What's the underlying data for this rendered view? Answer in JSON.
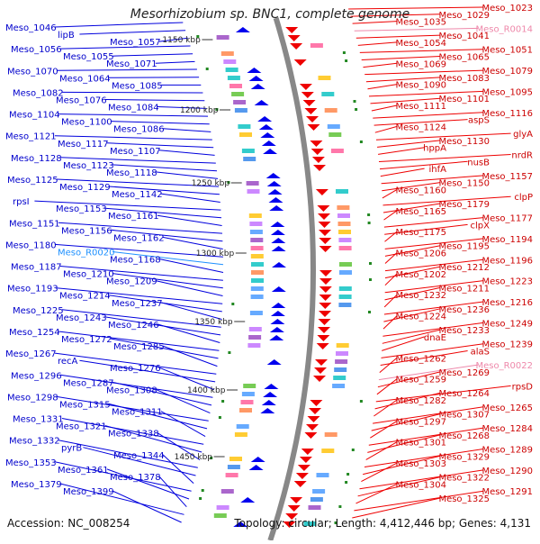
{
  "title": "Mesorhizobium sp. BNC1, complete genome",
  "footer": {
    "accession": "Accession: NC_008254",
    "summary": "Topology: circular; Length: 4,412,446 bp; Genes: 4,131"
  },
  "colors": {
    "left_label": "#0000cc",
    "left_line": "#0000dd",
    "right_label": "#cc0000",
    "right_line": "#ee0000",
    "rna_label": "#1e90ff",
    "pink_label": "#ee88aa",
    "backbone": "#888888",
    "ticks": "#228822",
    "minus_strand": "#0000ee",
    "plus_strand": "#ee0000"
  },
  "ruler": [
    "1150 kbp",
    "1200 kbp",
    "1250 kbp",
    "1300 kbp",
    "1350 kbp",
    "1400 kbp",
    "1450 kbp"
  ],
  "left_labels": [
    "Meso_1046",
    "lipB",
    "Meso_1057",
    "Meso_1056",
    "Meso_1055",
    "Meso_1071",
    "Meso_1070",
    "Meso_1064",
    "Meso_1085",
    "Meso_1082",
    "Meso_1076",
    "Meso_1084",
    "Meso_1104",
    "Meso_1100",
    "Meso_1086",
    "Meso_1121",
    "Meso_1117",
    "Meso_1107",
    "Meso_1128",
    "Meso_1123",
    "Meso_1118",
    "Meso_1125",
    "Meso_1129",
    "Meso_1142",
    "rpsI",
    "Meso_1153",
    "Meso_1161",
    "Meso_1151",
    "Meso_1156",
    "Meso_1162",
    "Meso_1180",
    "Meso_R0020",
    "Meso_1168",
    "Meso_1187",
    "Meso_1210",
    "Meso_1209",
    "Meso_1193",
    "Meso_1214",
    "Meso_1237",
    "Meso_1225",
    "Meso_1243",
    "Meso_1246",
    "Meso_1254",
    "Meso_1272",
    "Meso_1285",
    "Meso_1267",
    "recA",
    "Meso_1276",
    "Meso_1296",
    "Meso_1287",
    "Meso_1308",
    "Meso_1298",
    "Meso_1315",
    "Meso_1311",
    "Meso_1331",
    "Meso_1321",
    "Meso_1338",
    "Meso_1332",
    "pyrB",
    "Meso_1344",
    "Meso_1353",
    "Meso_1361",
    "Meso_1378",
    "Meso_1379",
    "Meso_1399"
  ],
  "right_labels": [
    "Meso_1023",
    "Meso_1029",
    "Meso_1035",
    "Meso_R0014",
    "Meso_1041",
    "Meso_1054",
    "Meso_1051",
    "Meso_1065",
    "Meso_1069",
    "Meso_1079",
    "Meso_1083",
    "Meso_1090",
    "Meso_1095",
    "Meso_1101",
    "Meso_1111",
    "Meso_1116",
    "aspS",
    "Meso_1124",
    "glyA",
    "Meso_1130",
    "hppA",
    "nrdR",
    "nusB",
    "ihfA",
    "Meso_1157",
    "Meso_1150",
    "Meso_1160",
    "clpP",
    "Meso_1179",
    "Meso_1165",
    "Meso_1177",
    "clpX",
    "Meso_1175",
    "Meso_1194",
    "Meso_1195",
    "Meso_1206",
    "Meso_1196",
    "Meso_1212",
    "Meso_1202",
    "Meso_1223",
    "Meso_1211",
    "Meso_1232",
    "Meso_1216",
    "Meso_1236",
    "Meso_1224",
    "Meso_1249",
    "Meso_1233",
    "dnaE",
    "Meso_1239",
    "alaS",
    "Meso_1262",
    "Meso_R0022",
    "Meso_1269",
    "Meso_1259",
    "rpsD",
    "Meso_1264",
    "Meso_1282",
    "Meso_1265",
    "Meso_1307",
    "Meso_1297",
    "Meso_1284",
    "Meso_1268",
    "Meso_1301",
    "Meso_1289",
    "Meso_1329",
    "Meso_1303",
    "Meso_1290",
    "Meso_1322",
    "Meso_1304",
    "Meso_1291",
    "Meso_1325"
  ]
}
